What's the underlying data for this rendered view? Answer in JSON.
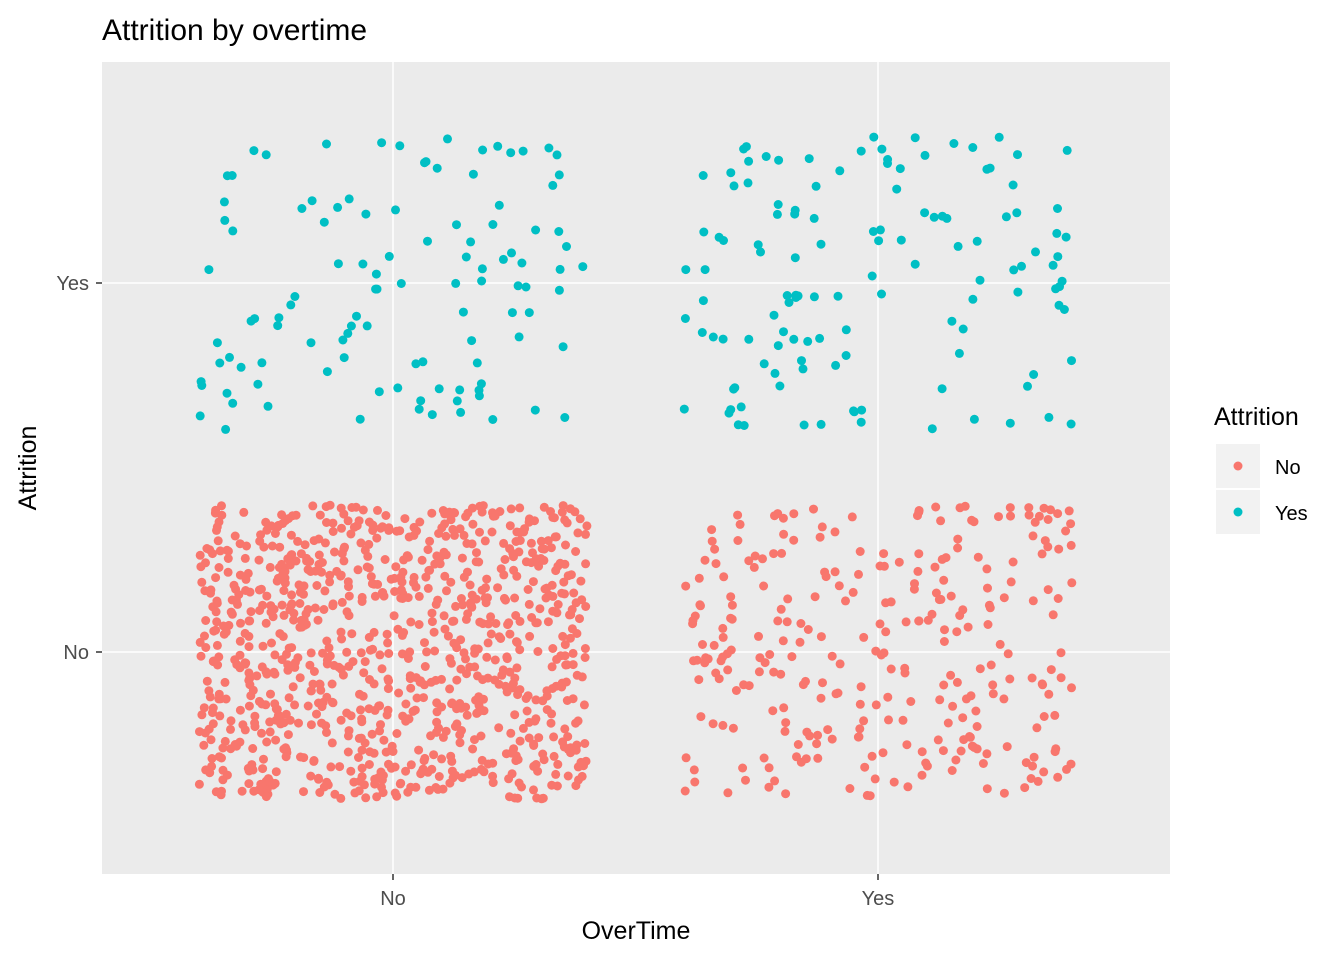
{
  "chart_data": {
    "type": "scatter",
    "jitter": true,
    "title": "Attrition by overtime",
    "xlabel": "OverTime",
    "ylabel": "Attrition",
    "x_categories": [
      "No",
      "Yes"
    ],
    "y_categories": [
      "No",
      "Yes"
    ],
    "grid": true,
    "legend": {
      "title": "Attrition",
      "position": "right",
      "entries": [
        "No",
        "Yes"
      ]
    },
    "series": [
      {
        "name": "No",
        "color": "#F8766D"
      },
      {
        "name": "Yes",
        "color": "#00BFC4"
      }
    ],
    "groups": [
      {
        "overtime": "No",
        "attrition": "No",
        "count": 944
      },
      {
        "overtime": "No",
        "attrition": "Yes",
        "count": 110
      },
      {
        "overtime": "Yes",
        "attrition": "No",
        "count": 289
      },
      {
        "overtime": "Yes",
        "attrition": "Yes",
        "count": 127
      }
    ],
    "background": "#EBEBEB",
    "grid_color": "#FFFFFF"
  }
}
